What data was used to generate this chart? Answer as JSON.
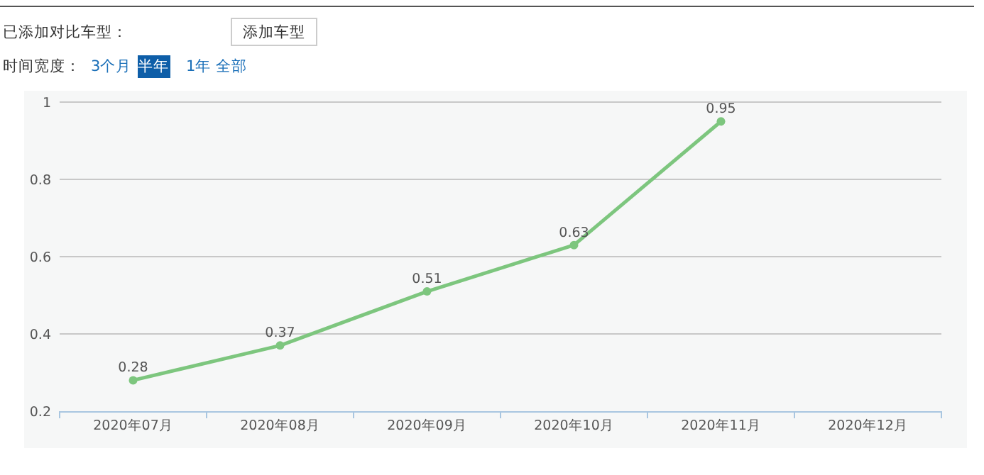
{
  "chart_data": {
    "type": "line",
    "annotations": [
      "已添加对比车型：",
      "添加车型",
      "时间宽度：",
      "3个月",
      "半年",
      "1年",
      "全部"
    ],
    "categories": [
      "2020年07月",
      "2020年08月",
      "2020年09月",
      "2020年10月",
      "2020年11月",
      "2020年12月"
    ],
    "series": [
      {
        "color": "#7dc67e",
        "values": [
          0.28,
          0.37,
          0.51,
          0.63,
          0.95,
          null
        ]
      }
    ],
    "ylim": [
      0.2,
      1
    ],
    "yticks": [
      0.2,
      0.4,
      0.6,
      0.8,
      1
    ],
    "grid": "y",
    "data_labels": true,
    "marker": "circle",
    "line_style": "solid"
  }
}
